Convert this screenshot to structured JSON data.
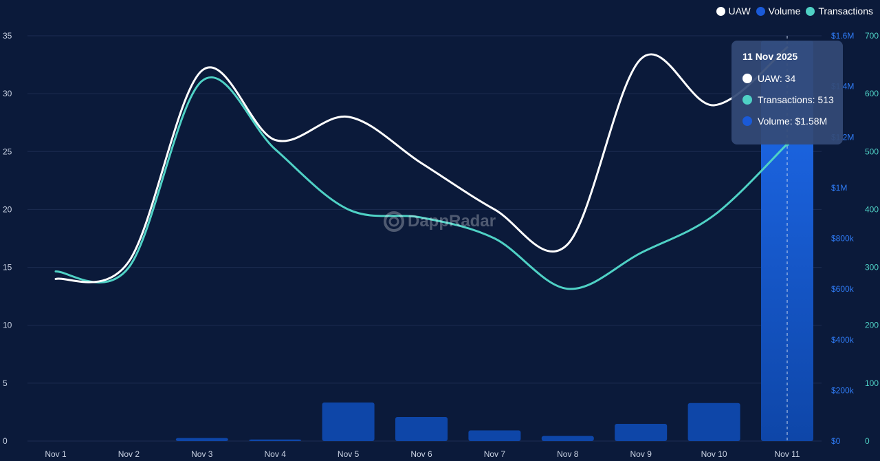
{
  "colors": {
    "background": "#0b1a3a",
    "uaw": "#ffffff",
    "volume": "#1a5ad8",
    "transactions": "#4fd1c5",
    "grid": "#1c2c52",
    "left_axis_text": "#c9d2e3",
    "volume_axis_text": "#2f7bf5",
    "tx_axis_text": "#4fd1c5",
    "x_axis_text": "#c9d2e3"
  },
  "legend": {
    "uaw": "UAW",
    "volume": "Volume",
    "transactions": "Transactions"
  },
  "watermark": "DappRadar",
  "tooltip": {
    "date": "11 Nov 2025",
    "uaw_label": "UAW",
    "uaw_value": "34",
    "tx_label": "Transactions",
    "tx_value": "513",
    "volume_label": "Volume",
    "volume_value": "$1.58M"
  },
  "chart_data": {
    "type": "bar+line",
    "categories": [
      "Nov 1",
      "Nov 2",
      "Nov 3",
      "Nov 4",
      "Nov 5",
      "Nov 6",
      "Nov 7",
      "Nov 8",
      "Nov 9",
      "Nov 10",
      "Nov 11"
    ],
    "series": [
      {
        "name": "UAW",
        "type": "line",
        "axis": "left",
        "values": [
          14,
          15.5,
          32,
          26,
          28,
          24,
          20,
          17,
          33,
          29,
          34
        ]
      },
      {
        "name": "Volume",
        "type": "bar",
        "axis": "right-volume",
        "values": [
          0,
          0,
          12000,
          6000,
          152000,
          95000,
          42000,
          20000,
          68000,
          150000,
          1580000
        ]
      },
      {
        "name": "Transactions",
        "type": "line",
        "axis": "right-transactions",
        "values": [
          293,
          300,
          622,
          504,
          400,
          386,
          350,
          263,
          325,
          390,
          513
        ]
      }
    ],
    "axes": {
      "left": {
        "ylim": [
          0,
          35
        ],
        "ticks": [
          "0",
          "5",
          "10",
          "15",
          "20",
          "25",
          "30",
          "35"
        ]
      },
      "volume": {
        "ylim": [
          0,
          1600000
        ],
        "ticks": [
          "$0",
          "$200k",
          "$400k",
          "$600k",
          "$800k",
          "$1M",
          "$1.2M",
          "$1.4M",
          "$1.6M"
        ]
      },
      "transactions": {
        "ylim": [
          0,
          700
        ],
        "ticks": [
          "0",
          "100",
          "200",
          "300",
          "400",
          "500",
          "600",
          "700"
        ]
      }
    },
    "highlighted_category": "Nov 11",
    "grid": true,
    "legend_position": "top-right"
  }
}
